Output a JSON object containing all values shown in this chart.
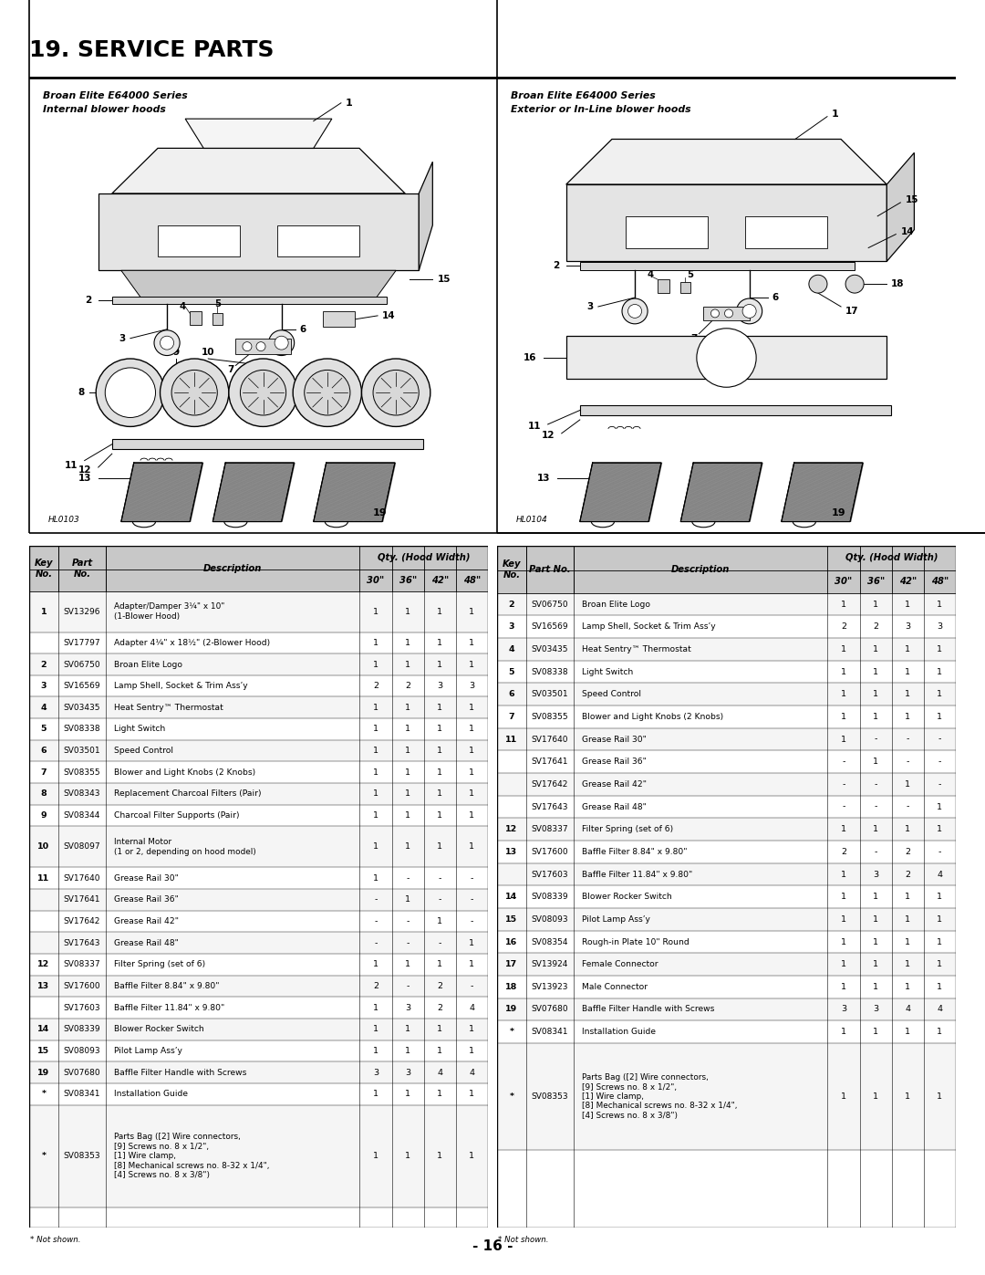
{
  "title": "19. SERVICE PARTS",
  "left_diagram_title1": "Broan Elite E64000 Series",
  "left_diagram_title2": "Internal blower hoods",
  "right_diagram_title1": "Broan Elite E64000 Series",
  "right_diagram_title2": "Exterior or In-Line blower hoods",
  "left_diagram_code": "HL0103",
  "right_diagram_code": "HL0104",
  "page_number": "- 16 -",
  "left_table_data": [
    [
      "1",
      "SV13296",
      "Adapter/Damper 3¼\" x 10\"\n(1-Blower Hood)",
      "1",
      "1",
      "1",
      "1"
    ],
    [
      "",
      "SV17797",
      "Adapter 4¼\" x 18½\" (2-Blower Hood)",
      "1",
      "1",
      "1",
      "1"
    ],
    [
      "2",
      "SV06750",
      "Broan Elite Logo",
      "1",
      "1",
      "1",
      "1"
    ],
    [
      "3",
      "SV16569",
      "Lamp Shell, Socket & Trim Ass’y",
      "2",
      "2",
      "3",
      "3"
    ],
    [
      "4",
      "SV03435",
      "Heat Sentry™ Thermostat",
      "1",
      "1",
      "1",
      "1"
    ],
    [
      "5",
      "SV08338",
      "Light Switch",
      "1",
      "1",
      "1",
      "1"
    ],
    [
      "6",
      "SV03501",
      "Speed Control",
      "1",
      "1",
      "1",
      "1"
    ],
    [
      "7",
      "SV08355",
      "Blower and Light Knobs (2 Knobs)",
      "1",
      "1",
      "1",
      "1"
    ],
    [
      "8",
      "SV08343",
      "Replacement Charcoal Filters (Pair)",
      "1",
      "1",
      "1",
      "1"
    ],
    [
      "9",
      "SV08344",
      "Charcoal Filter Supports (Pair)",
      "1",
      "1",
      "1",
      "1"
    ],
    [
      "10",
      "SV08097",
      "Internal Motor\n(1 or 2, depending on hood model)",
      "1",
      "1",
      "1",
      "1"
    ],
    [
      "11",
      "SV17640",
      "Grease Rail 30\"",
      "1",
      "-",
      "-",
      "-"
    ],
    [
      "",
      "SV17641",
      "Grease Rail 36\"",
      "-",
      "1",
      "-",
      "-"
    ],
    [
      "",
      "SV17642",
      "Grease Rail 42\"",
      "-",
      "-",
      "1",
      "-"
    ],
    [
      "",
      "SV17643",
      "Grease Rail 48\"",
      "-",
      "-",
      "-",
      "1"
    ],
    [
      "12",
      "SV08337",
      "Filter Spring (set of 6)",
      "1",
      "1",
      "1",
      "1"
    ],
    [
      "13",
      "SV17600",
      "Baffle Filter 8.84\" x 9.80\"",
      "2",
      "-",
      "2",
      "-"
    ],
    [
      "",
      "SV17603",
      "Baffle Filter 11.84\" x 9.80\"",
      "1",
      "3",
      "2",
      "4"
    ],
    [
      "14",
      "SV08339",
      "Blower Rocker Switch",
      "1",
      "1",
      "1",
      "1"
    ],
    [
      "15",
      "SV08093",
      "Pilot Lamp Ass’y",
      "1",
      "1",
      "1",
      "1"
    ],
    [
      "19",
      "SV07680",
      "Baffle Filter Handle with Screws",
      "3",
      "3",
      "4",
      "4"
    ],
    [
      "*",
      "SV08341",
      "Installation Guide",
      "1",
      "1",
      "1",
      "1"
    ],
    [
      "*",
      "SV08353",
      "Parts Bag ([2] Wire connectors,\n[9] Screws no. 8 x 1/2\",\n[1] Wire clamp,\n[8] Mechanical screws no. 8-32 x 1/4\",\n[4] Screws no. 8 x 3/8\")",
      "1",
      "1",
      "1",
      "1"
    ]
  ],
  "right_table_data": [
    [
      "2",
      "SV06750",
      "Broan Elite Logo",
      "1",
      "1",
      "1",
      "1"
    ],
    [
      "3",
      "SV16569",
      "Lamp Shell, Socket & Trim Ass’y",
      "2",
      "2",
      "3",
      "3"
    ],
    [
      "4",
      "SV03435",
      "Heat Sentry™ Thermostat",
      "1",
      "1",
      "1",
      "1"
    ],
    [
      "5",
      "SV08338",
      "Light Switch",
      "1",
      "1",
      "1",
      "1"
    ],
    [
      "6",
      "SV03501",
      "Speed Control",
      "1",
      "1",
      "1",
      "1"
    ],
    [
      "7",
      "SV08355",
      "Blower and Light Knobs (2 Knobs)",
      "1",
      "1",
      "1",
      "1"
    ],
    [
      "11",
      "SV17640",
      "Grease Rail 30\"",
      "1",
      "-",
      "-",
      "-"
    ],
    [
      "",
      "SV17641",
      "Grease Rail 36\"",
      "-",
      "1",
      "-",
      "-"
    ],
    [
      "",
      "SV17642",
      "Grease Rail 42\"",
      "-",
      "-",
      "1",
      "-"
    ],
    [
      "",
      "SV17643",
      "Grease Rail 48\"",
      "-",
      "-",
      "-",
      "1"
    ],
    [
      "12",
      "SV08337",
      "Filter Spring (set of 6)",
      "1",
      "1",
      "1",
      "1"
    ],
    [
      "13",
      "SV17600",
      "Baffle Filter 8.84\" x 9.80\"",
      "2",
      "-",
      "2",
      "-"
    ],
    [
      "",
      "SV17603",
      "Baffle Filter 11.84\" x 9.80\"",
      "1",
      "3",
      "2",
      "4"
    ],
    [
      "14",
      "SV08339",
      "Blower Rocker Switch",
      "1",
      "1",
      "1",
      "1"
    ],
    [
      "15",
      "SV08093",
      "Pilot Lamp Ass’y",
      "1",
      "1",
      "1",
      "1"
    ],
    [
      "16",
      "SV08354",
      "Rough-in Plate 10\" Round",
      "1",
      "1",
      "1",
      "1"
    ],
    [
      "17",
      "SV13924",
      "Female Connector",
      "1",
      "1",
      "1",
      "1"
    ],
    [
      "18",
      "SV13923",
      "Male Connector",
      "1",
      "1",
      "1",
      "1"
    ],
    [
      "19",
      "SV07680",
      "Baffle Filter Handle with Screws",
      "3",
      "3",
      "4",
      "4"
    ],
    [
      "*",
      "SV08341",
      "Installation Guide",
      "1",
      "1",
      "1",
      "1"
    ],
    [
      "*",
      "SV08353",
      "Parts Bag ([2] Wire connectors,\n[9] Screws no. 8 x 1/2\",\n[1] Wire clamp,\n[8] Mechanical screws no. 8-32 x 1/4\",\n[4] Screws no. 8 x 3/8\")",
      "1",
      "1",
      "1",
      "1"
    ]
  ],
  "not_shown_note": "* Not shown.",
  "bg_color": "#ffffff",
  "title_font_size": 18,
  "table_fs": 6.8,
  "header_fs": 7.2
}
